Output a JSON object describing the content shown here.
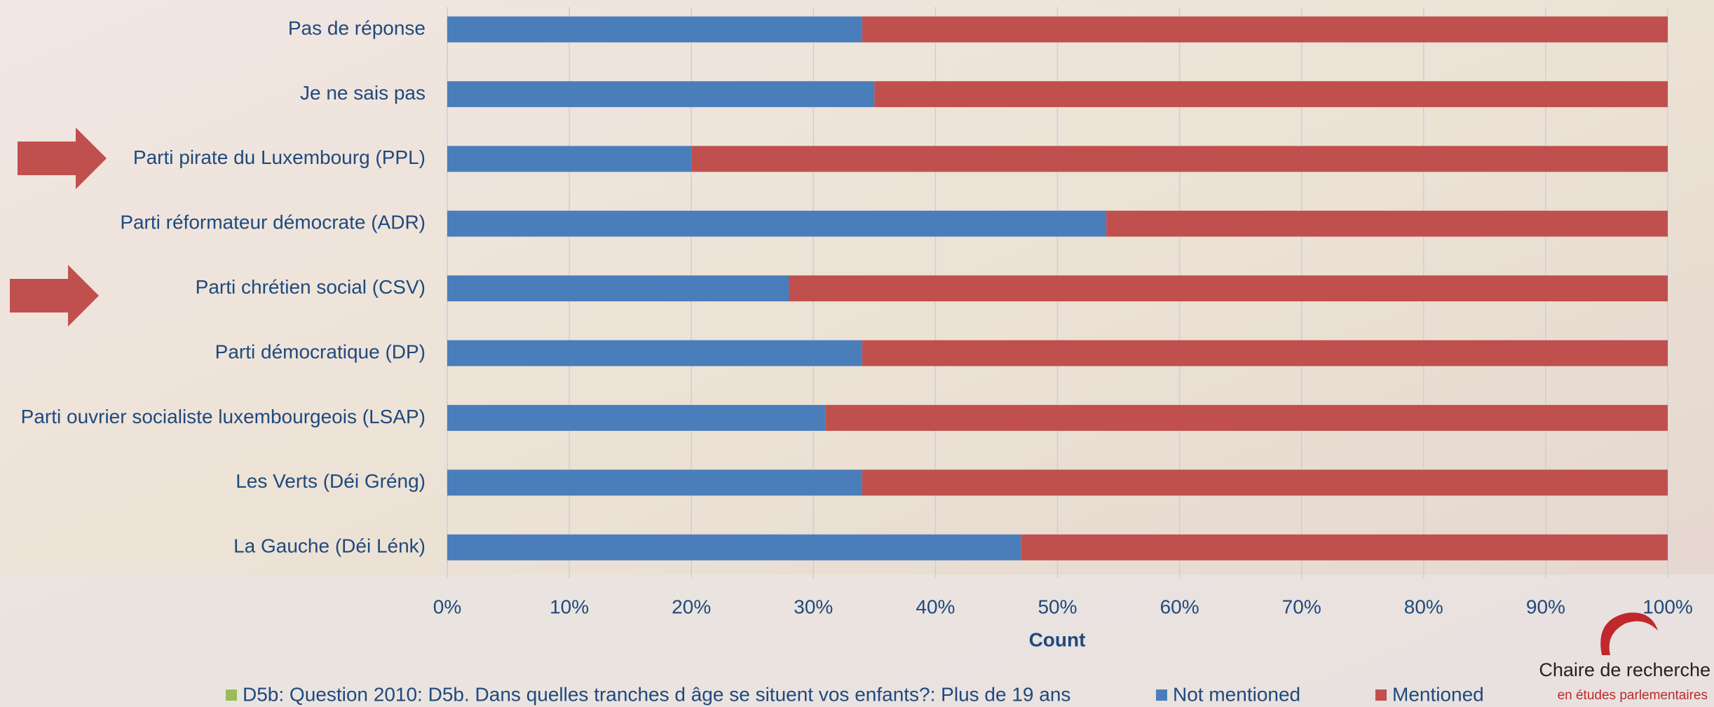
{
  "chart_data": {
    "type": "bar",
    "orientation": "horizontal",
    "stacked": true,
    "categories": [
      "Pas de réponse",
      "Je ne sais pas",
      "Parti pirate du Luxembourg (PPL)",
      "Parti réformateur démocrate (ADR)",
      "Parti chrétien social (CSV)",
      "Parti démocratique (DP)",
      "Parti ouvrier socialiste luxembourgeois (LSAP)",
      "Les Verts (Déi Gréng)",
      "La Gauche (Déi Lénk)"
    ],
    "series": [
      {
        "name": "Not mentioned",
        "color": "#4a7ebb",
        "values": [
          34,
          35,
          20,
          54,
          28,
          34,
          31,
          34,
          47
        ]
      },
      {
        "name": "Mentioned",
        "color": "#c0504d",
        "values": [
          66,
          65,
          80,
          46,
          72,
          66,
          69,
          66,
          53
        ]
      }
    ],
    "xlim": [
      0,
      100
    ],
    "xticks": [
      {
        "value": 0,
        "label": "0%"
      },
      {
        "value": 10,
        "label": "10%"
      },
      {
        "value": 20,
        "label": "20%"
      },
      {
        "value": 30,
        "label": "30%"
      },
      {
        "value": 40,
        "label": "40%"
      },
      {
        "value": 50,
        "label": "50%"
      },
      {
        "value": 60,
        "label": "60%"
      },
      {
        "value": 70,
        "label": "70%"
      },
      {
        "value": 80,
        "label": "80%"
      },
      {
        "value": 90,
        "label": "90%"
      },
      {
        "value": 100,
        "label": "100%"
      }
    ],
    "xlabel": "Count",
    "grid": true,
    "legend_title": {
      "text": "D5b: Question 2010: D5b. Dans quelles tranches d âge se situent vos enfants?: Plus de 19 ans",
      "color": "#9bbb59"
    }
  },
  "logo": {
    "line1": "Chaire de recherche",
    "line2": "en études parlementaires"
  }
}
